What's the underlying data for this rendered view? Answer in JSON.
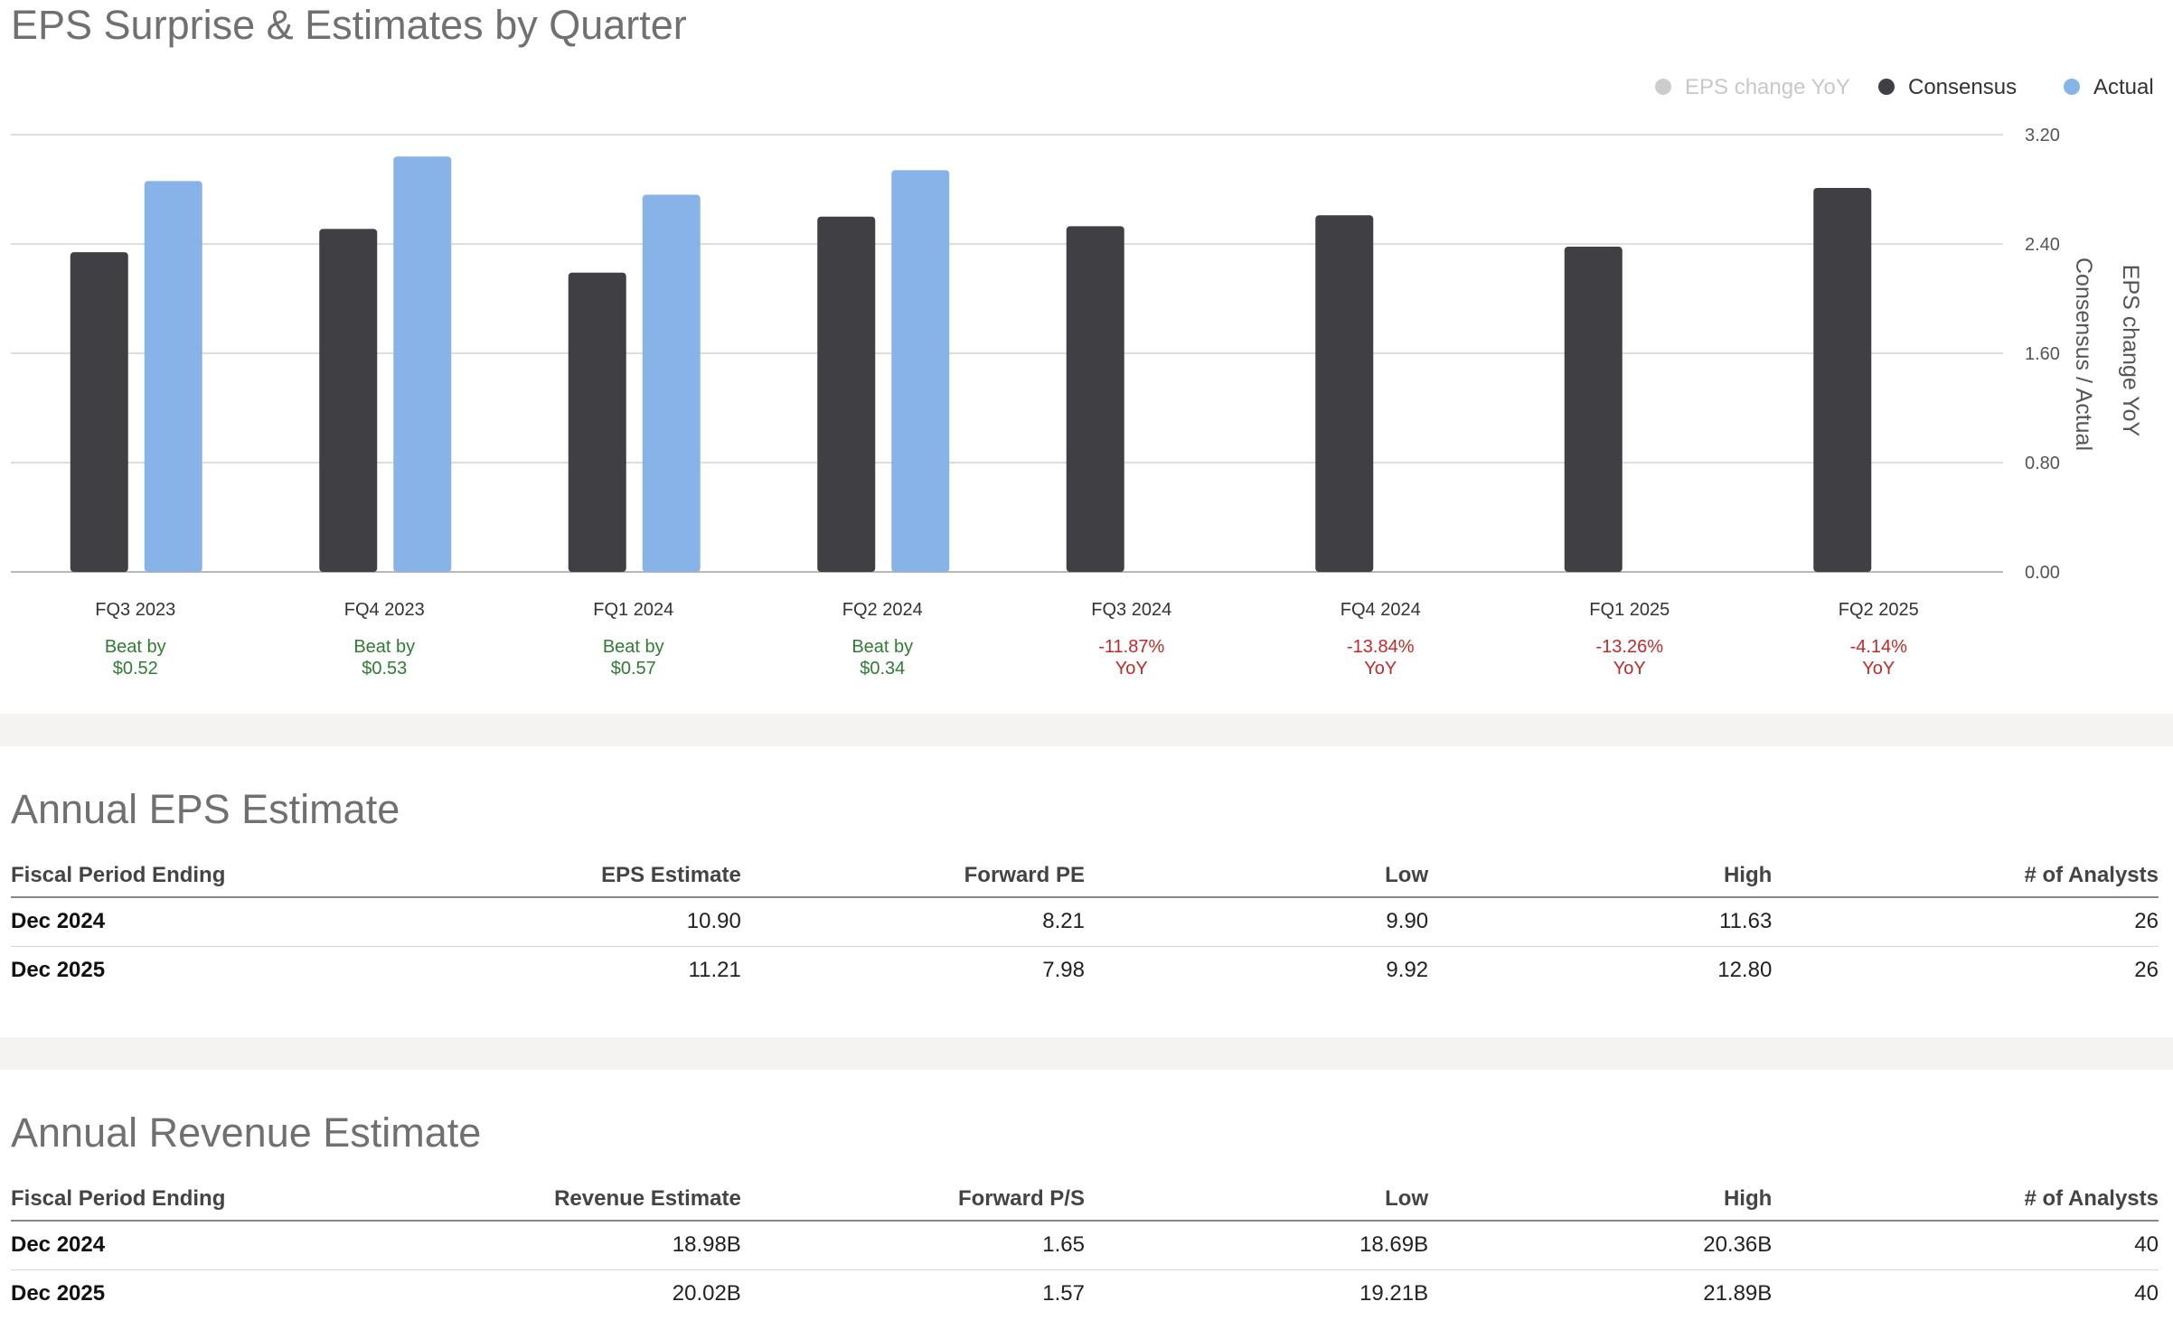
{
  "eps_chart": {
    "title": "EPS Surprise & Estimates by Quarter"
  },
  "chart_data": {
    "type": "bar",
    "title": "EPS Surprise & Estimates by Quarter",
    "categories": [
      "FQ3 2023",
      "FQ4 2023",
      "FQ1 2024",
      "FQ2 2024",
      "FQ3 2024",
      "FQ4 2024",
      "FQ1 2025",
      "FQ2 2025"
    ],
    "series": [
      {
        "name": "Consensus",
        "color": "#404044",
        "values": [
          2.34,
          2.51,
          2.19,
          2.6,
          2.53,
          2.61,
          2.38,
          2.81
        ]
      },
      {
        "name": "Actual",
        "color": "#88b3e8",
        "values": [
          2.86,
          3.04,
          2.76,
          2.94,
          null,
          null,
          null,
          null
        ]
      }
    ],
    "legend": [
      {
        "name": "EPS change YoY",
        "color": "#cccccc",
        "muted": true
      },
      {
        "name": "Consensus",
        "color": "#404044",
        "muted": false
      },
      {
        "name": "Actual",
        "color": "#88b3e8",
        "muted": false
      }
    ],
    "ylim": [
      0,
      3.2
    ],
    "yticks": [
      "0.00",
      "0.80",
      "1.60",
      "2.40",
      "3.20"
    ],
    "ylabel": "Consensus / Actual",
    "y2label": "EPS change YoY",
    "legend_position": "top-right",
    "grid": true,
    "annotations": [
      {
        "line1": "Beat by",
        "line2": "$0.52",
        "color": "#2e7d32"
      },
      {
        "line1": "Beat by",
        "line2": "$0.53",
        "color": "#2e7d32"
      },
      {
        "line1": "Beat by",
        "line2": "$0.57",
        "color": "#2e7d32"
      },
      {
        "line1": "Beat by",
        "line2": "$0.34",
        "color": "#2e7d32"
      },
      {
        "line1": "-11.87%",
        "line2": "YoY",
        "color": "#c62828"
      },
      {
        "line1": "-13.84%",
        "line2": "YoY",
        "color": "#c62828"
      },
      {
        "line1": "-13.26%",
        "line2": "YoY",
        "color": "#c62828"
      },
      {
        "line1": "-4.14%",
        "line2": "YoY",
        "color": "#c62828"
      }
    ]
  },
  "annual_eps": {
    "title": "Annual EPS Estimate",
    "headers": [
      "Fiscal Period Ending",
      "EPS Estimate",
      "Forward PE",
      "Low",
      "High",
      "# of Analysts"
    ],
    "rows": [
      [
        "Dec 2024",
        "10.90",
        "8.21",
        "9.90",
        "11.63",
        "26"
      ],
      [
        "Dec 2025",
        "11.21",
        "7.98",
        "9.92",
        "12.80",
        "26"
      ]
    ]
  },
  "annual_revenue": {
    "title": "Annual Revenue Estimate",
    "headers": [
      "Fiscal Period Ending",
      "Revenue Estimate",
      "Forward P/S",
      "Low",
      "High",
      "# of Analysts"
    ],
    "rows": [
      [
        "Dec 2024",
        "18.98B",
        "1.65",
        "18.69B",
        "20.36B",
        "40"
      ],
      [
        "Dec 2025",
        "20.02B",
        "1.57",
        "19.21B",
        "21.89B",
        "40"
      ]
    ]
  }
}
